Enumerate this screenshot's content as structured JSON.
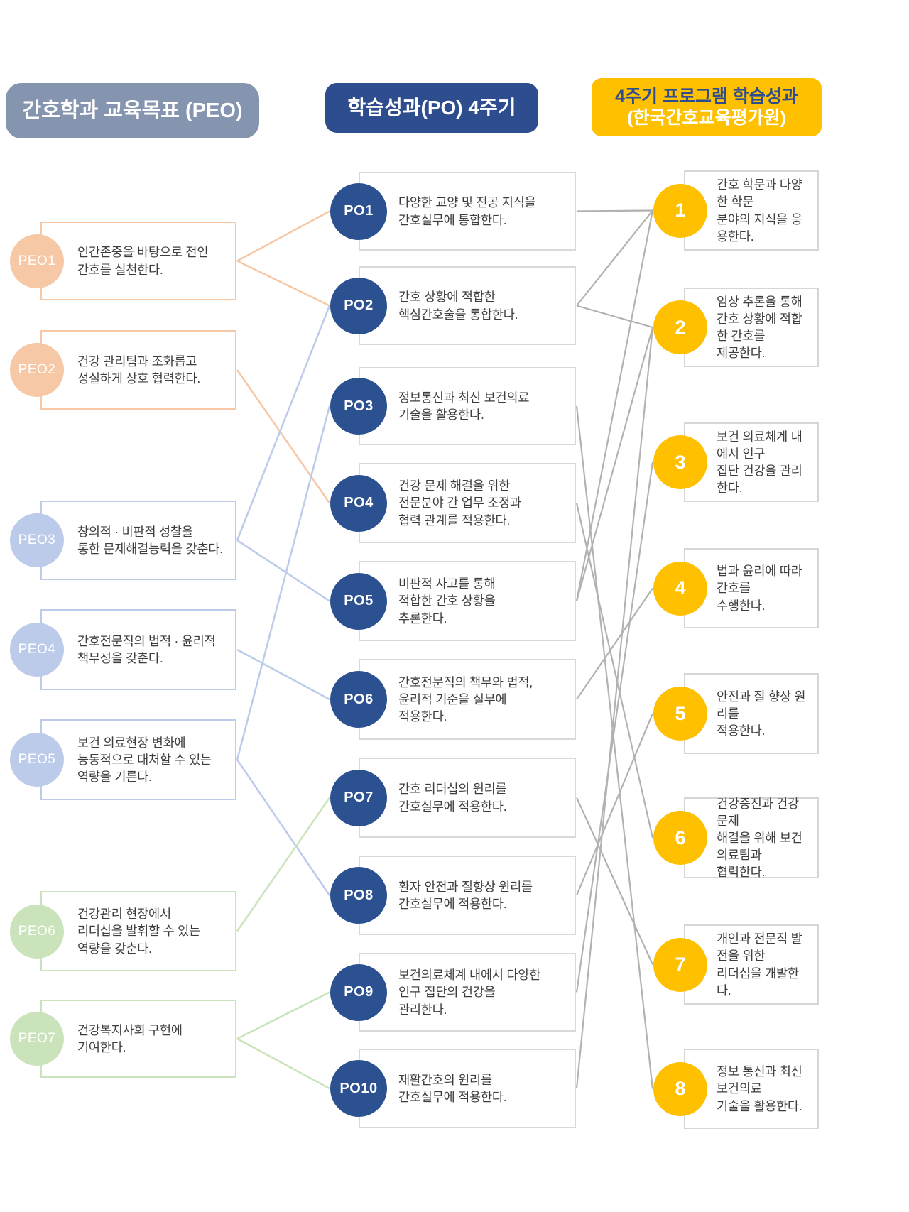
{
  "headers": {
    "peo": "간호학과 교육목표 (PEO)",
    "po": "학습성과(PO) 4주기",
    "kab_line1": "4주기 프로그램 학습성과",
    "kab_line2": "(한국간호교육평가원)"
  },
  "peo": {
    "items": [
      {
        "id": "PEO1",
        "group": "peach",
        "text": "인간존중을 바탕으로 전인\n간호를 실천한다."
      },
      {
        "id": "PEO2",
        "group": "peach",
        "text": "건강 관리팀과 조화롭고\n성실하게 상호 협력한다."
      },
      {
        "id": "PEO3",
        "group": "blue",
        "text": "창의적 · 비판적 성찰을\n통한 문제해결능력을 갖춘다."
      },
      {
        "id": "PEO4",
        "group": "blue",
        "text": "간호전문직의 법적 · 윤리적\n책무성을 갖춘다."
      },
      {
        "id": "PEO5",
        "group": "blue",
        "text": "보건 의료현장 변화에\n능동적으로 대처할 수 있는\n역량을 기른다."
      },
      {
        "id": "PEO6",
        "group": "green",
        "text": "건강관리 현장에서\n리더십을 발휘할 수 있는\n역량을 갖춘다."
      },
      {
        "id": "PEO7",
        "group": "green",
        "text": "건강복지사회 구현에\n기여한다."
      }
    ]
  },
  "po": {
    "items": [
      {
        "id": "PO1",
        "text": "다양한 교양 및 전공 지식을\n간호실무에 통합한다."
      },
      {
        "id": "PO2",
        "text": "간호 상황에 적합한\n핵심간호술을 통합한다."
      },
      {
        "id": "PO3",
        "text": "정보통신과 최신 보건의료\n기술을 활용한다."
      },
      {
        "id": "PO4",
        "text": "건강 문제 해결을 위한\n전문분야 간 업무 조정과\n협력 관계를 적용한다."
      },
      {
        "id": "PO5",
        "text": "비판적 사고를 통해\n적합한 간호 상황을\n추론한다."
      },
      {
        "id": "PO6",
        "text": "간호전문직의 책무와 법적,\n윤리적 기준을 실무에\n적용한다."
      },
      {
        "id": "PO7",
        "text": "간호 리더십의 원리를\n간호실무에 적용한다."
      },
      {
        "id": "PO8",
        "text": "환자 안전과 질향상 원리를\n간호실무에 적용한다."
      },
      {
        "id": "PO9",
        "text": "보건의료체계 내에서 다양한\n인구 집단의 건강을\n관리한다."
      },
      {
        "id": "PO10",
        "text": "재활간호의 원리를\n간호실무에 적용한다."
      }
    ]
  },
  "kabone": {
    "items": [
      {
        "id": "1",
        "text": "간호 학문과 다양한 학문\n분야의 지식을 응용한다."
      },
      {
        "id": "2",
        "text": "임상 추론을 통해\n간호 상황에 적합한 간호를\n제공한다."
      },
      {
        "id": "3",
        "text": "보건 의료체계 내에서 인구\n집단 건강을 관리한다."
      },
      {
        "id": "4",
        "text": "법과 윤리에 따라 간호를\n수행한다."
      },
      {
        "id": "5",
        "text": "안전과 질 향상 원리를\n적용한다."
      },
      {
        "id": "6",
        "text": "건강증진과 건강 문제\n해결을 위해 보건 의료팀과\n협력한다."
      },
      {
        "id": "7",
        "text": "개인과 전문직 발전을 위한\n리더십을 개발한다."
      },
      {
        "id": "8",
        "text": "정보 통신과 최신 보건의료\n기술을 활용한다."
      }
    ]
  },
  "connections": {
    "peo_to_po": [
      [
        "PEO1",
        "PO1"
      ],
      [
        "PEO1",
        "PO2"
      ],
      [
        "PEO2",
        "PO4"
      ],
      [
        "PEO3",
        "PO2"
      ],
      [
        "PEO3",
        "PO5"
      ],
      [
        "PEO4",
        "PO6"
      ],
      [
        "PEO5",
        "PO3"
      ],
      [
        "PEO5",
        "PO8"
      ],
      [
        "PEO6",
        "PO7"
      ],
      [
        "PEO7",
        "PO9"
      ],
      [
        "PEO7",
        "PO10"
      ]
    ],
    "po_to_kabone": [
      [
        "PO1",
        "1"
      ],
      [
        "PO2",
        "1"
      ],
      [
        "PO2",
        "2"
      ],
      [
        "PO3",
        "8"
      ],
      [
        "PO4",
        "6"
      ],
      [
        "PO5",
        "1"
      ],
      [
        "PO5",
        "2"
      ],
      [
        "PO6",
        "4"
      ],
      [
        "PO7",
        "7"
      ],
      [
        "PO8",
        "5"
      ],
      [
        "PO9",
        "3"
      ],
      [
        "PO10",
        "2"
      ]
    ]
  },
  "colors": {
    "header_peo_bg": "#8695AF",
    "header_po_bg": "#2E4D8E",
    "header_kab_bg": "#FFC000",
    "header_kab_line1_text": "#2E4D8E",
    "header_kab_line2_text": "#FFFFFF",
    "po_circle": "#2B5191",
    "kab_circle": "#FFC000",
    "group_peach": "#F6C8A5",
    "group_blue": "#BCCBE9",
    "group_green": "#CBE3BB",
    "neutral_border": "#D9D9D9",
    "gray_line": "#B2B2B2",
    "body_text": "#3D3D3D"
  }
}
